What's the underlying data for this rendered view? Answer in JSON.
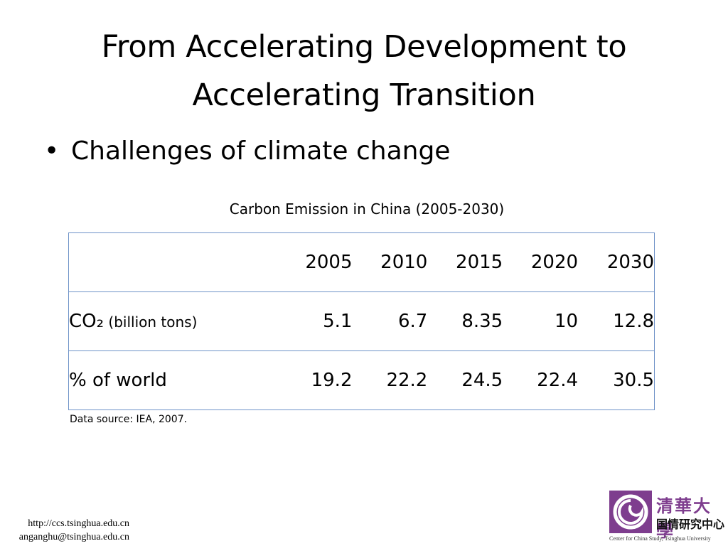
{
  "slide": {
    "title_line1": "From Accelerating Development to",
    "title_line2": "Accelerating Transition",
    "bullet": "Challenges of climate change",
    "bullet_symbol": "•"
  },
  "table": {
    "caption": "Carbon Emission in China (2005-2030)",
    "header_blank": "",
    "years": [
      "2005",
      "2010",
      "2015",
      "2020",
      "2030"
    ],
    "rows": [
      {
        "label_main": "CO₂",
        "label_unit": " (billion tons)",
        "values": [
          "5.1",
          "6.7",
          "8.35",
          "10",
          "12.8"
        ]
      },
      {
        "label_main": "% of world",
        "label_unit": "",
        "values": [
          "19.2",
          "22.2",
          "24.5",
          "22.4",
          "30.5"
        ]
      }
    ],
    "source": "Data source: IEA, 2007."
  },
  "footer": {
    "url": "http://ccs.tsinghua.edu.cn",
    "email": "anganghu@tsinghua.edu.cn"
  },
  "logo": {
    "cn_university": "清華大學",
    "cn_center": "国情研究中心",
    "en_name": "Center for China Study, Tsinghua University",
    "colors": {
      "brand_purple": "#7e3d8e"
    }
  }
}
